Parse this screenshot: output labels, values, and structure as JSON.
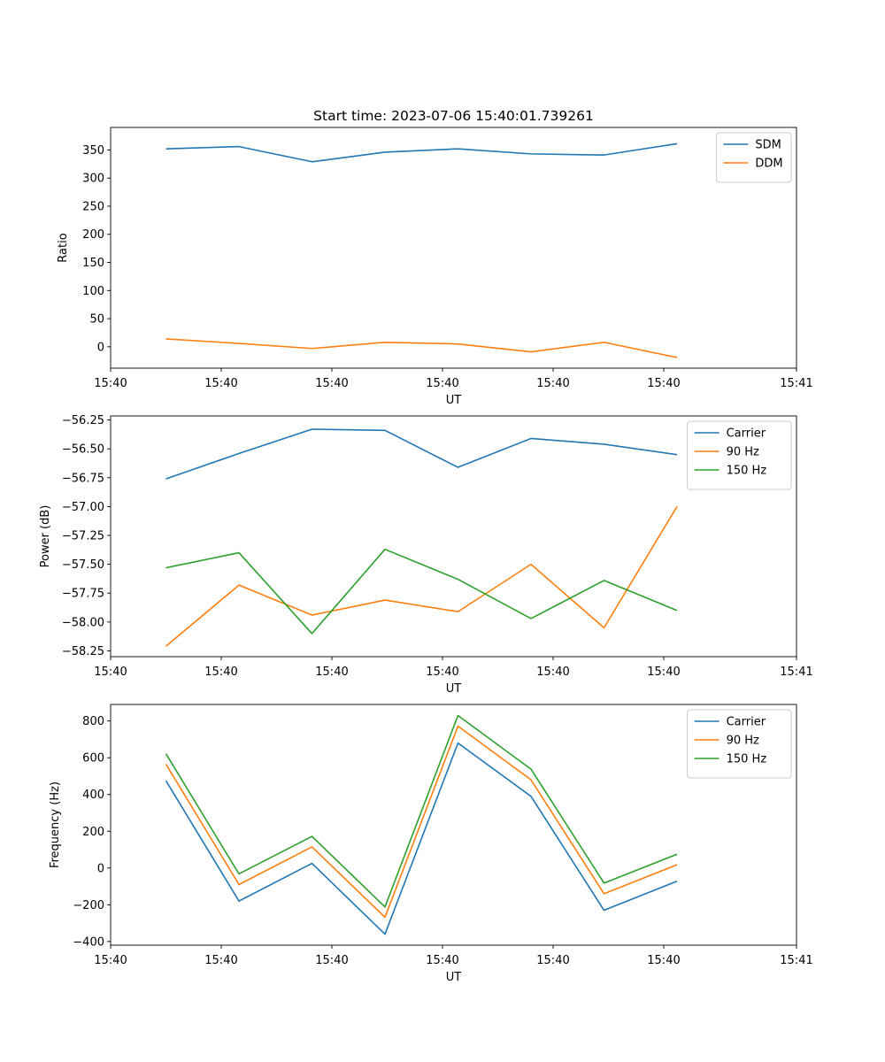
{
  "figure": {
    "title": "Start time: 2023-07-06 15:40:01.739261"
  },
  "chart_data": [
    {
      "type": "line",
      "title": "Start time: 2023-07-06 15:40:01.739261",
      "xlabel": "UT",
      "ylabel": "Ratio",
      "xlim": [
        0,
        9.3
      ],
      "ylim": [
        -38,
        390
      ],
      "xticks": [
        0,
        1.5,
        3,
        4.5,
        6,
        7.5,
        9.3
      ],
      "xtick_labels": [
        "15:40",
        "15:40",
        "15:40",
        "15:40",
        "15:40",
        "15:40",
        "15:41"
      ],
      "yticks": [
        0,
        50,
        100,
        150,
        200,
        250,
        300,
        350
      ],
      "ytick_labels": [
        "0",
        "50",
        "100",
        "150",
        "200",
        "250",
        "300",
        "350"
      ],
      "legend_position": "top-right",
      "x": [
        0.75,
        1.74,
        2.73,
        3.72,
        4.71,
        5.7,
        6.69,
        7.68
      ],
      "series": [
        {
          "name": "SDM",
          "color": "#1f77b4",
          "values": [
            352,
            356,
            329,
            346,
            352,
            343,
            341,
            361
          ]
        },
        {
          "name": "DDM",
          "color": "#ff7f0e",
          "values": [
            14,
            6,
            -3,
            8,
            5,
            -9,
            8,
            -19
          ]
        }
      ]
    },
    {
      "type": "line",
      "title": "",
      "xlabel": "UT",
      "ylabel": "Power (dB)",
      "xlim": [
        0,
        9.3
      ],
      "ylim": [
        -58.3,
        -56.215
      ],
      "xticks": [
        0,
        1.5,
        3,
        4.5,
        6,
        7.5,
        9.3
      ],
      "xtick_labels": [
        "15:40",
        "15:40",
        "15:40",
        "15:40",
        "15:40",
        "15:40",
        "15:41"
      ],
      "yticks": [
        -58.25,
        -58.0,
        -57.75,
        -57.5,
        -57.25,
        -57.0,
        -56.75,
        -56.5,
        -56.25
      ],
      "ytick_labels": [
        "−58.25",
        "−58.00",
        "−57.75",
        "−57.50",
        "−57.25",
        "−57.00",
        "−56.75",
        "−56.50",
        "−56.25"
      ],
      "legend_position": "top-right",
      "x": [
        0.75,
        1.74,
        2.73,
        3.72,
        4.71,
        5.7,
        6.69,
        7.68
      ],
      "series": [
        {
          "name": "Carrier",
          "color": "#1f77b4",
          "values": [
            -56.76,
            -56.54,
            -56.33,
            -56.34,
            -56.66,
            -56.41,
            -56.46,
            -56.55
          ]
        },
        {
          "name": "90 Hz",
          "color": "#ff7f0e",
          "values": [
            -58.21,
            -57.68,
            -57.94,
            -57.81,
            -57.91,
            -57.5,
            -58.05,
            -57.0
          ]
        },
        {
          "name": "150 Hz",
          "color": "#2ca02c",
          "values": [
            -57.53,
            -57.4,
            -58.1,
            -57.37,
            -57.63,
            -57.97,
            -57.64,
            -57.9
          ]
        }
      ]
    },
    {
      "type": "line",
      "title": "",
      "xlabel": "UT",
      "ylabel": "Frequency (Hz)",
      "xlim": [
        0,
        9.3
      ],
      "ylim": [
        -420,
        890
      ],
      "xticks": [
        0,
        1.5,
        3,
        4.5,
        6,
        7.5,
        9.3
      ],
      "xtick_labels": [
        "15:40",
        "15:40",
        "15:40",
        "15:40",
        "15:40",
        "15:40",
        "15:41"
      ],
      "yticks": [
        -400,
        -200,
        0,
        200,
        400,
        600,
        800
      ],
      "ytick_labels": [
        "−400",
        "−200",
        "0",
        "200",
        "400",
        "600",
        "800"
      ],
      "legend_position": "top-right",
      "x": [
        0.75,
        1.74,
        2.73,
        3.72,
        4.71,
        5.7,
        6.69,
        7.68
      ],
      "series": [
        {
          "name": "Carrier",
          "color": "#1f77b4",
          "values": [
            475,
            -180,
            25,
            -360,
            680,
            390,
            -230,
            -72
          ]
        },
        {
          "name": "90 Hz",
          "color": "#ff7f0e",
          "values": [
            565,
            -90,
            115,
            -268,
            772,
            480,
            -140,
            18
          ]
        },
        {
          "name": "150 Hz",
          "color": "#2ca02c",
          "values": [
            622,
            -32,
            172,
            -212,
            830,
            538,
            -82,
            75
          ]
        }
      ]
    }
  ]
}
